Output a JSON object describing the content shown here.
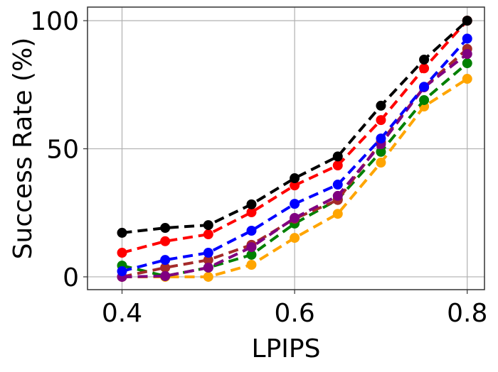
{
  "chart_data": {
    "type": "line",
    "title": "",
    "xlabel": "LPIPS",
    "ylabel": "Success Rate (%)",
    "xlim": [
      0.36,
      0.82
    ],
    "ylim": [
      -5,
      105.3
    ],
    "xticks": [
      0.4,
      0.6,
      0.8
    ],
    "xtick_labels": [
      "0.4",
      "0.6",
      "0.8"
    ],
    "yticks": [
      0,
      50,
      100
    ],
    "ytick_labels": [
      "0",
      "50",
      "100"
    ],
    "grid": true,
    "line_style": "dashed",
    "marker": "circle",
    "x": [
      0.4,
      0.45,
      0.5,
      0.55,
      0.6,
      0.65,
      0.7,
      0.75,
      0.8
    ],
    "series": [
      {
        "color": "#ffa500",
        "values": [
          0,
          0,
          0,
          4.7,
          15.2,
          24.6,
          44.6,
          66.5,
          77.3
        ]
      },
      {
        "color": "#008000",
        "values": [
          4.4,
          0.3,
          3.6,
          8.6,
          20.8,
          30.2,
          48.8,
          69,
          83.4
        ]
      },
      {
        "color": "#a52a2a",
        "values": [
          0,
          3.6,
          6.6,
          12.5,
          22.7,
          30,
          52.6,
          74,
          89
        ]
      },
      {
        "color": "#800080",
        "values": [
          0,
          0.3,
          3.6,
          11.6,
          23,
          31.6,
          51.8,
          74,
          87
        ]
      },
      {
        "color": "#0000ff",
        "values": [
          2.2,
          6.6,
          9.4,
          18,
          28.5,
          36,
          54,
          74.2,
          93
        ]
      },
      {
        "color": "#ff0000",
        "values": [
          9.4,
          13.9,
          16.6,
          25.2,
          35.7,
          43.5,
          61.2,
          81.4,
          100
        ]
      },
      {
        "color": "#000000",
        "values": [
          17.2,
          19.1,
          20.2,
          28.3,
          38.5,
          47,
          66.8,
          84.8,
          100
        ]
      }
    ]
  }
}
